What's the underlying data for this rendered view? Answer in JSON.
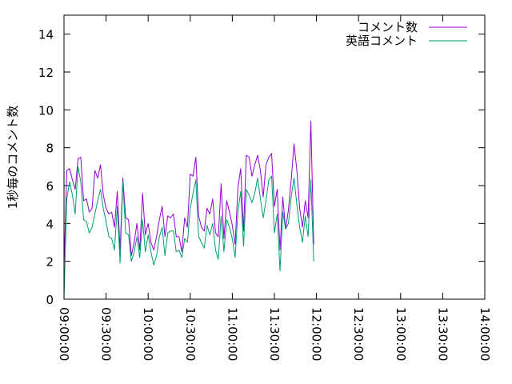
{
  "chart_data": {
    "type": "line",
    "ylabel": "1秒毎のコメント数",
    "ylim": [
      0,
      15
    ],
    "y_ticks": [
      "0",
      "2",
      "4",
      "6",
      "8",
      "10",
      "12",
      "14"
    ],
    "x_ticks": [
      "09:00:00",
      "09:30:00",
      "10:00:00",
      "10:30:00",
      "11:00:00",
      "11:30:00",
      "12:00:00",
      "12:30:00",
      "13:00:00",
      "13:30:00",
      "14:00:00"
    ],
    "xlim": [
      "09:00:00",
      "14:00:00"
    ],
    "x_interval_minutes": 2,
    "x_start": "09:00:00",
    "legend_position": "top-right",
    "grid": false,
    "series": [
      {
        "name": "コメント数",
        "color": "#9400d3",
        "values": [
          1.7,
          6.8,
          6.9,
          6.3,
          5.8,
          7.4,
          7.5,
          5.2,
          5.3,
          4.6,
          4.8,
          6.8,
          6.4,
          7.1,
          5.5,
          4.8,
          4.5,
          4.6,
          3.8,
          5.7,
          2.6,
          6.4,
          4.3,
          4.2,
          2.3,
          3.0,
          4.0,
          2.6,
          5.6,
          3.4,
          4.0,
          3.0,
          2.6,
          3.3,
          4.2,
          4.9,
          3.3,
          4.4,
          4.3,
          4.5,
          3.3,
          3.3,
          2.5,
          4.3,
          3.8,
          6.6,
          6.5,
          7.5,
          4.4,
          3.8,
          3.6,
          4.8,
          4.5,
          5.3,
          3.5,
          3.3,
          6.1,
          3.2,
          5.2,
          4.6,
          3.9,
          2.9,
          5.9,
          6.9,
          3.6,
          7.6,
          7.5,
          6.5,
          7.1,
          7.6,
          6.8,
          5.4,
          7.1,
          7.5,
          7.7,
          4.9,
          5.8,
          2.6,
          5.4,
          3.7,
          4.7,
          6.3,
          8.2,
          6.8,
          4.8,
          3.8,
          5.2,
          4.3,
          9.4,
          2.9
        ]
      },
      {
        "name": "英語コメント",
        "color": "#009e73",
        "values": [
          0.0,
          5.3,
          6.2,
          5.5,
          4.5,
          7.0,
          6.2,
          4.2,
          4.1,
          3.5,
          3.8,
          4.5,
          5.2,
          5.8,
          4.8,
          4.1,
          3.3,
          3.2,
          2.6,
          4.9,
          1.9,
          6.2,
          3.5,
          3.4,
          2.0,
          2.5,
          3.3,
          2.2,
          4.2,
          2.5,
          3.4,
          2.5,
          1.8,
          2.3,
          3.3,
          3.8,
          2.3,
          3.5,
          3.6,
          3.6,
          2.5,
          2.6,
          2.2,
          3.2,
          3.0,
          4.8,
          5.6,
          6.3,
          3.3,
          3.0,
          2.7,
          3.9,
          3.4,
          4.0,
          2.6,
          2.1,
          4.4,
          2.5,
          4.2,
          3.8,
          3.2,
          2.2,
          4.6,
          5.7,
          2.8,
          5.8,
          5.5,
          5.1,
          5.6,
          6.4,
          5.3,
          4.3,
          5.2,
          6.3,
          6.5,
          3.5,
          4.5,
          1.5,
          4.6,
          3.7,
          4.0,
          5.4,
          6.4,
          5.0,
          3.8,
          3.0,
          4.4,
          3.3,
          6.3,
          2.0
        ]
      }
    ]
  }
}
